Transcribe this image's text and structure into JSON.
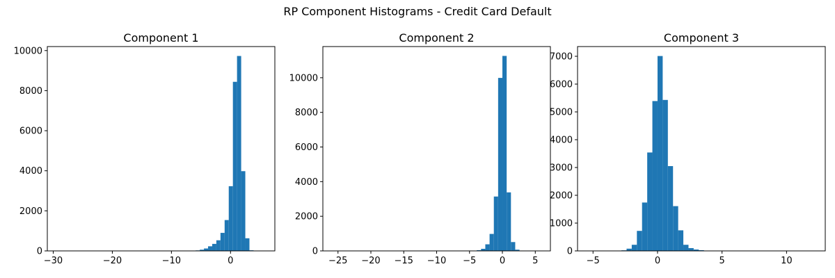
{
  "figure": {
    "suptitle": "RP Component Histograms - Credit Card Default"
  },
  "chart_data": [
    {
      "type": "bar",
      "title": "Component 1",
      "xlabel": "",
      "ylabel": "",
      "xlim": [
        -31,
        7.5
      ],
      "ylim": [
        0,
        10200
      ],
      "xticks": [
        -30,
        -20,
        -10,
        0
      ],
      "yticks": [
        0,
        2000,
        4000,
        6000,
        8000,
        10000
      ],
      "grid": false,
      "bar_color": "#1f77b4",
      "bins": [
        {
          "x0": -7.3,
          "x1": -6.6,
          "count": 5
        },
        {
          "x0": -6.6,
          "x1": -5.9,
          "count": 10
        },
        {
          "x0": -5.9,
          "x1": -5.2,
          "count": 25
        },
        {
          "x0": -5.2,
          "x1": -4.5,
          "count": 60
        },
        {
          "x0": -4.5,
          "x1": -3.8,
          "count": 120
        },
        {
          "x0": -3.8,
          "x1": -3.1,
          "count": 230
        },
        {
          "x0": -3.1,
          "x1": -2.4,
          "count": 350
        },
        {
          "x0": -2.4,
          "x1": -1.7,
          "count": 530
        },
        {
          "x0": -1.7,
          "x1": -1.0,
          "count": 900
        },
        {
          "x0": -1.0,
          "x1": -0.3,
          "count": 1540
        },
        {
          "x0": -0.3,
          "x1": 0.4,
          "count": 3230
        },
        {
          "x0": 0.4,
          "x1": 1.1,
          "count": 8440
        },
        {
          "x0": 1.1,
          "x1": 1.8,
          "count": 9730
        },
        {
          "x0": 1.8,
          "x1": 2.5,
          "count": 3980
        },
        {
          "x0": 2.5,
          "x1": 3.2,
          "count": 630
        },
        {
          "x0": 3.2,
          "x1": 3.9,
          "count": 30
        }
      ]
    },
    {
      "type": "bar",
      "title": "Component 2",
      "xlabel": "",
      "ylabel": "",
      "xlim": [
        -27.3,
        7.3
      ],
      "ylim": [
        0,
        11800
      ],
      "xticks": [
        -25,
        -20,
        -15,
        -10,
        -5,
        0,
        5
      ],
      "yticks": [
        0,
        2000,
        4000,
        6000,
        8000,
        10000
      ],
      "grid": false,
      "bar_color": "#1f77b4",
      "bins": [
        {
          "x0": -4.55,
          "x1": -3.9,
          "count": 10
        },
        {
          "x0": -3.9,
          "x1": -3.25,
          "count": 40
        },
        {
          "x0": -3.25,
          "x1": -2.6,
          "count": 120
        },
        {
          "x0": -2.6,
          "x1": -1.95,
          "count": 380
        },
        {
          "x0": -1.95,
          "x1": -1.3,
          "count": 980
        },
        {
          "x0": -1.3,
          "x1": -0.65,
          "count": 3140
        },
        {
          "x0": -0.65,
          "x1": 0.0,
          "count": 9990
        },
        {
          "x0": 0.0,
          "x1": 0.65,
          "count": 11260
        },
        {
          "x0": 0.65,
          "x1": 1.3,
          "count": 3380
        },
        {
          "x0": 1.3,
          "x1": 1.95,
          "count": 510
        },
        {
          "x0": 1.95,
          "x1": 2.6,
          "count": 70
        },
        {
          "x0": 2.6,
          "x1": 3.25,
          "count": 15
        }
      ]
    },
    {
      "type": "bar",
      "title": "Component 3",
      "xlabel": "",
      "ylabel": "",
      "xlim": [
        -6.2,
        13.0
      ],
      "ylim": [
        0,
        7350
      ],
      "xticks": [
        -5,
        0,
        5,
        10
      ],
      "yticks": [
        0,
        1000,
        2000,
        3000,
        4000,
        5000,
        6000,
        7000
      ],
      "grid": false,
      "bar_color": "#1f77b4",
      "bins": [
        {
          "x0": -2.8,
          "x1": -2.4,
          "count": 20
        },
        {
          "x0": -2.4,
          "x1": -2.0,
          "count": 80
        },
        {
          "x0": -2.0,
          "x1": -1.6,
          "count": 220
        },
        {
          "x0": -1.6,
          "x1": -1.2,
          "count": 720
        },
        {
          "x0": -1.2,
          "x1": -0.8,
          "count": 1740
        },
        {
          "x0": -0.8,
          "x1": -0.4,
          "count": 3540
        },
        {
          "x0": -0.4,
          "x1": 0.0,
          "count": 5390
        },
        {
          "x0": 0.0,
          "x1": 0.4,
          "count": 7010
        },
        {
          "x0": 0.4,
          "x1": 0.8,
          "count": 5430
        },
        {
          "x0": 0.8,
          "x1": 1.2,
          "count": 3050
        },
        {
          "x0": 1.2,
          "x1": 1.6,
          "count": 1610
        },
        {
          "x0": 1.6,
          "x1": 2.0,
          "count": 740
        },
        {
          "x0": 2.0,
          "x1": 2.4,
          "count": 220
        },
        {
          "x0": 2.4,
          "x1": 2.8,
          "count": 100
        },
        {
          "x0": 2.8,
          "x1": 3.2,
          "count": 50
        },
        {
          "x0": 3.2,
          "x1": 3.6,
          "count": 25
        },
        {
          "x0": 3.6,
          "x1": 4.0,
          "count": 10
        }
      ]
    }
  ]
}
